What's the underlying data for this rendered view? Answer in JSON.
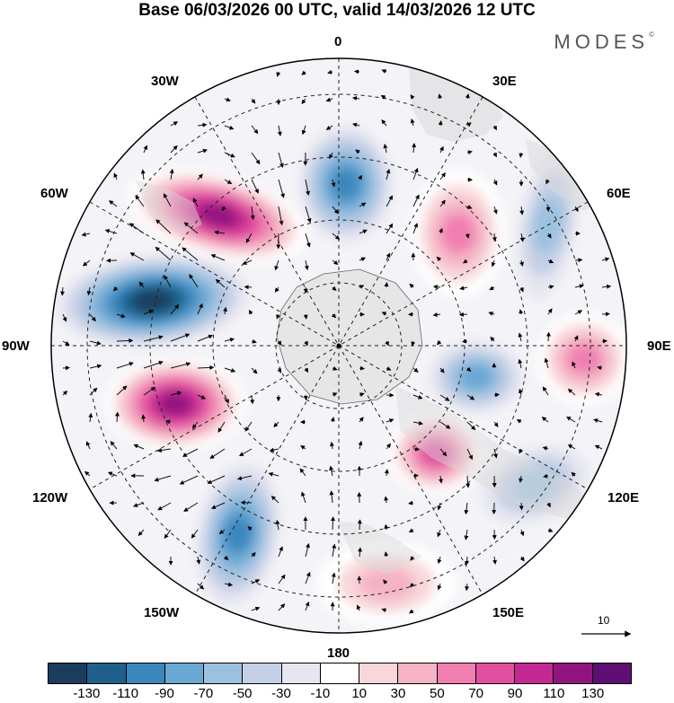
{
  "title": "Base 06/03/2026 00 UTC, valid 14/03/2026 12 UTC",
  "brand": {
    "name": "MODES",
    "mark": "©"
  },
  "longitude_labels": {
    "lon_0": "0",
    "lon_30e": "30E",
    "lon_60e": "60E",
    "lon_90e": "90E",
    "lon_120e": "120E",
    "lon_150e": "150E",
    "lon_180": "180",
    "lon_150w": "150W",
    "lon_120w": "120W",
    "lon_90w": "90W",
    "lon_60w": "60W",
    "lon_30w": "30W"
  },
  "reference_vector": {
    "label": "10"
  },
  "legend": {
    "colors": [
      "#1a3d5c",
      "#1f5f8b",
      "#3a87be",
      "#6aa8d4",
      "#9cc1e0",
      "#c5cfe6",
      "#e6e6f0",
      "#ffffff",
      "#f8d7da",
      "#f5b3c6",
      "#f07fb0",
      "#e0509e",
      "#c42893",
      "#91157e",
      "#5d0f73"
    ],
    "ticks": [
      "-130",
      "-110",
      "-90",
      "-70",
      "-50",
      "-30",
      "-10",
      "10",
      "30",
      "50",
      "70",
      "90",
      "110",
      "130"
    ]
  },
  "anomaly_centers": [
    {
      "name": "60W-30W positive",
      "value": 130,
      "color": "#91157e"
    },
    {
      "name": "0 negative",
      "value": -90,
      "color": "#3a87be"
    },
    {
      "name": "30E positive",
      "value": 70,
      "color": "#f07fb0"
    },
    {
      "name": "60E negative",
      "value": -50,
      "color": "#9cc1e0"
    },
    {
      "name": "90W negative",
      "value": -130,
      "color": "#1f5f8b"
    },
    {
      "name": "90W-120W positive",
      "value": 130,
      "color": "#5d0f73"
    },
    {
      "name": "150W negative",
      "value": -90,
      "color": "#3a87be"
    },
    {
      "name": "180 positive",
      "value": 50,
      "color": "#f5b3c6"
    },
    {
      "name": "120E negative",
      "value": -50,
      "color": "#9cc1e0"
    },
    {
      "name": "90E positive",
      "value": 70,
      "color": "#f07fb0"
    },
    {
      "name": "90E negative",
      "value": -70,
      "color": "#6aa8d4"
    },
    {
      "name": "135E positive",
      "value": 90,
      "color": "#e0509e"
    }
  ]
}
